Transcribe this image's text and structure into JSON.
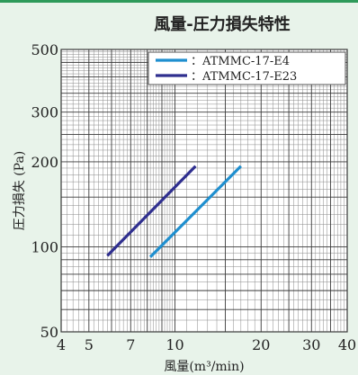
{
  "chart_data": {
    "type": "line",
    "title": "風量-圧力損失特性",
    "xlabel": "風量",
    "xunit": "(m³/min)",
    "ylabel": "圧力損失 (Pa)",
    "x_scale": "log",
    "y_scale": "log",
    "xlim": [
      4,
      40
    ],
    "ylim": [
      50,
      500
    ],
    "x_ticks": [
      4,
      5,
      7,
      10,
      20,
      30,
      40
    ],
    "y_ticks": [
      50,
      100,
      200,
      300,
      500
    ],
    "grid": true,
    "legend_position": "top-right",
    "series": [
      {
        "name": "：ATMMC-17-E4",
        "color": "#1f8fcf",
        "x": [
          8.2,
          17.0
        ],
        "y": [
          92,
          193
        ]
      },
      {
        "name": "：ATMMC-17-E23",
        "color": "#2f2f8f",
        "x": [
          5.8,
          11.8
        ],
        "y": [
          93,
          193
        ]
      }
    ]
  },
  "colors": {
    "background": "#e8f3ea",
    "plot_background": "#ffffff",
    "grid": "#4a4a4a",
    "accent_line": "#2e9a5a"
  }
}
